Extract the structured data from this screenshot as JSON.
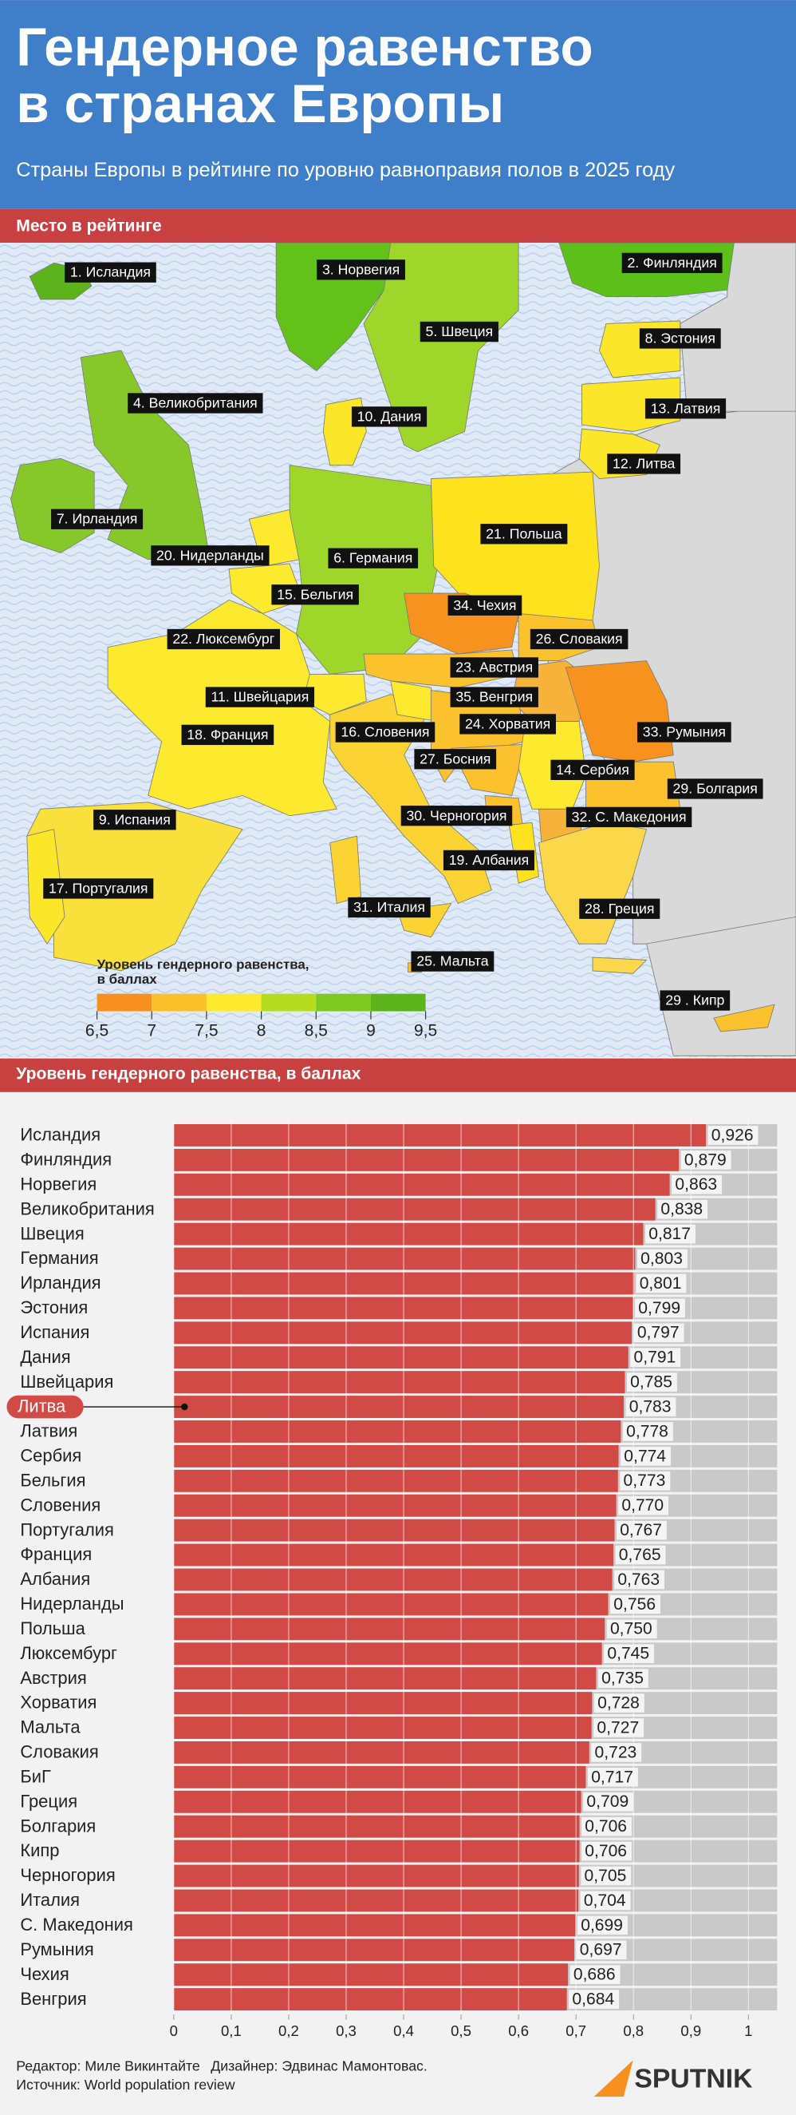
{
  "header": {
    "title": [
      "Гендерное равенство",
      "в странах Европы"
    ],
    "subtitle": "Страны Европы в рейтинге по уровню равноправия полов в 2025 году"
  },
  "map": {
    "section_title": "Место в рейтинге",
    "labels": [
      "1. Исландия",
      "2. Финляндия",
      "3. Норвегия",
      "4. Великобритания",
      "5. Швеция",
      "6. Германия",
      "7. Ирландия",
      "8. Эстония",
      "9. Испания",
      "10. Дания",
      "11. Швейцария",
      "12. Литва",
      "13. Латвия",
      "14. Сербия",
      "15. Бельгия",
      "16. Словения",
      "17. Португалия",
      "18. Франция",
      "19. Албания",
      "20. Нидерланды",
      "21. Польша",
      "22. Люксембург",
      "23. Австрия",
      "24. Хорватия",
      "25. Мальта",
      "26. Словакия",
      "27. Босния",
      "28. Греция",
      "29. Болгария",
      "29 . Кипр",
      "30. Черногория",
      "31. Италия",
      "32. С. Македония",
      "33. Румыния",
      "34. Чехия",
      "35. Венгрия"
    ],
    "legend": {
      "title": [
        "Уровень гендерного равенства,",
        "в баллах"
      ],
      "ticks": [
        {
          "value": 6.5,
          "label": "6,5"
        },
        7,
        {
          "value": 7.5,
          "label": "7,5"
        },
        8,
        {
          "value": 8.5,
          "label": "8,5"
        },
        9,
        {
          "value": 9.5,
          "label": "9,5"
        }
      ],
      "colors": [
        "#f7901e",
        "#fbbf2a",
        "#fde92e",
        "#b5dc1e",
        "#7ec81f",
        "#5cb31c"
      ]
    }
  },
  "chart_data": {
    "type": "bar",
    "orientation": "horizontal",
    "title": "Уровень гендерного равенства, в баллах",
    "categories": [
      "Исландия",
      "Финляндия",
      "Норвегия",
      "Великобритания",
      "Швеция",
      "Германия",
      "Ирландия",
      "Эстония",
      "Испания",
      "Дания",
      "Швейцария",
      "Литва",
      "Латвия",
      "Сербия",
      "Бельгия",
      "Словения",
      "Португалия",
      "Франция",
      "Албания",
      "Нидерланды",
      "Польша",
      "Люксембург",
      "Австрия",
      "Хорватия",
      "Мальта",
      "Словакия",
      "БиГ",
      "Греция",
      "Болгария",
      "Кипр",
      "Черногория",
      "Италия",
      "С. Македония",
      "Румыния",
      "Чехия",
      "Венгрия"
    ],
    "values": [
      0.926,
      0.879,
      0.863,
      0.838,
      0.817,
      0.803,
      0.801,
      0.799,
      0.797,
      0.791,
      0.785,
      0.783,
      0.778,
      0.774,
      0.773,
      0.77,
      0.767,
      0.765,
      0.763,
      0.756,
      0.75,
      0.745,
      0.735,
      0.728,
      0.727,
      0.723,
      0.717,
      0.709,
      0.706,
      0.706,
      0.705,
      0.704,
      0.699,
      0.697,
      0.686,
      0.684
    ],
    "value_labels": [
      "0,926",
      "0,879",
      "0,863",
      "0,838",
      "0,817",
      "0,803",
      "0,801",
      "0,799",
      "0,797",
      "0,791",
      "0,785",
      "0,783",
      "0,778",
      "0,774",
      "0,773",
      "0,770",
      "0,767",
      "0,765",
      "0,763",
      "0,756",
      "0,750",
      "0,745",
      "0,735",
      "0,728",
      "0,727",
      "0,723",
      "0,717",
      "0,709",
      "0,706",
      "0,706",
      "0,705",
      "0,704",
      "0,699",
      "0,697",
      "0,686",
      "0,684"
    ],
    "color": "#d24a45",
    "track_color": "#c9c9c9",
    "xlim": [
      0,
      1.05
    ],
    "xticks": [
      0,
      {
        "value": 0.1,
        "label": "0,1"
      },
      {
        "value": 0.2,
        "label": "0,2"
      },
      {
        "value": 0.3,
        "label": "0,3"
      },
      {
        "value": 0.4,
        "label": "0,4"
      },
      {
        "value": 0.5,
        "label": "0,5"
      },
      {
        "value": 0.6,
        "label": "0,6"
      },
      {
        "value": 0.7,
        "label": "0,7"
      },
      {
        "value": 0.8,
        "label": "0,8"
      },
      {
        "value": 0.9,
        "label": "0,9"
      },
      1
    ],
    "grid": true
  },
  "footer": {
    "editor": "Редактор: Миле Викинтайте",
    "designer": "Дизайнер: Эдвинас Мамонтовас.",
    "source": "Источник: World population review",
    "logo": "SPUTNIK"
  }
}
